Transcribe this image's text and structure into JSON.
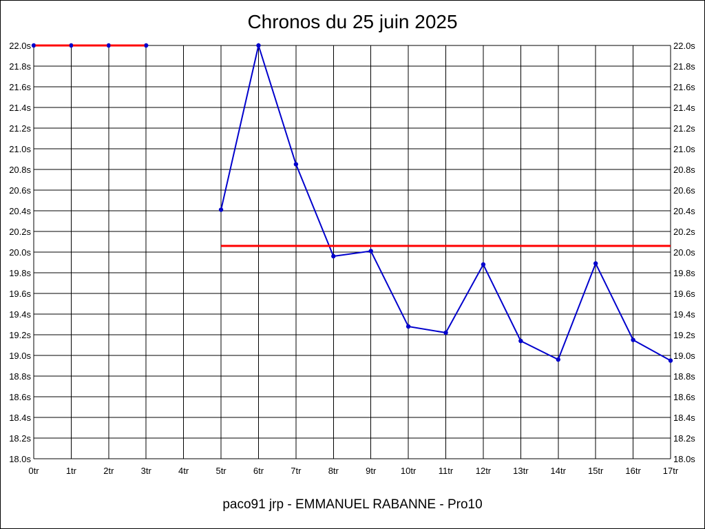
{
  "chart_data": {
    "type": "line",
    "title": "Chronos du 25 juin 2025",
    "footer": "paco91 jrp - EMMANUEL RABANNE - Pro10",
    "x_tick_labels": [
      "0tr",
      "1tr",
      "2tr",
      "3tr",
      "4tr",
      "5tr",
      "6tr",
      "7tr",
      "8tr",
      "9tr",
      "10tr",
      "11tr",
      "12tr",
      "13tr",
      "14tr",
      "15tr",
      "16tr",
      "17tr"
    ],
    "y_tick_labels": [
      "18.0s",
      "18.2s",
      "18.4s",
      "18.6s",
      "18.8s",
      "19.0s",
      "19.2s",
      "19.4s",
      "19.6s",
      "19.8s",
      "20.0s",
      "20.2s",
      "20.4s",
      "20.6s",
      "20.8s",
      "21.0s",
      "21.2s",
      "21.4s",
      "21.6s",
      "21.8s",
      "22.0s"
    ],
    "xlim": [
      0,
      17
    ],
    "ylim": [
      18.0,
      22.0
    ],
    "grid": true,
    "y_axis_both_sides": true,
    "series": [
      {
        "color": "#0000cc",
        "segments": [
          {
            "x": [
              0,
              1,
              2,
              3
            ],
            "y": [
              22.0,
              22.0,
              22.0,
              22.0
            ]
          },
          {
            "x": [
              5,
              6,
              7,
              8,
              9,
              10,
              11,
              12,
              13,
              14,
              15,
              16,
              17
            ],
            "y": [
              20.41,
              22.0,
              20.85,
              19.96,
              20.01,
              19.28,
              19.22,
              19.88,
              19.14,
              18.96,
              19.89,
              19.15,
              18.95
            ]
          }
        ]
      }
    ],
    "reference_lines": [
      {
        "color": "#ff0000",
        "x": [
          0,
          3
        ],
        "y": 22.0
      },
      {
        "color": "#ff0000",
        "x": [
          5,
          17
        ],
        "y": 20.06
      }
    ]
  }
}
